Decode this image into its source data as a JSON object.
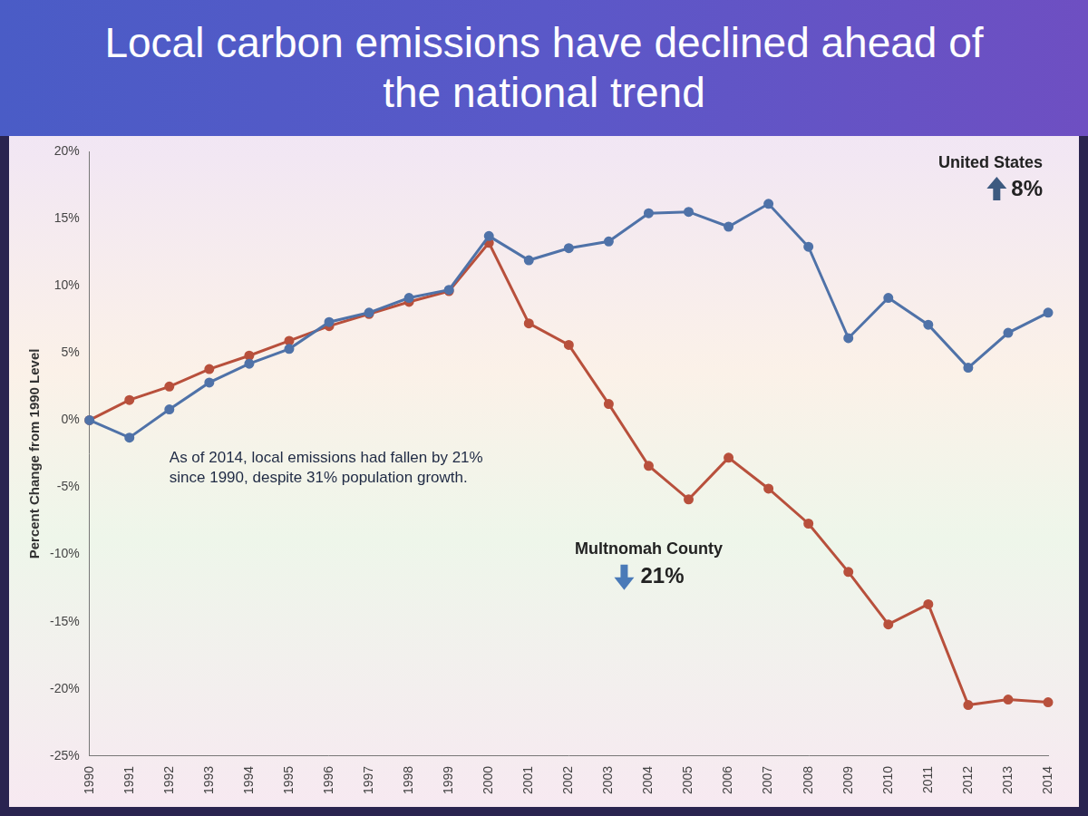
{
  "chart_data": {
    "type": "line",
    "title": "Local carbon emissions have declined ahead of the national trend",
    "y_label": "Percent Change from 1990 Level",
    "categories": [
      "1990",
      "1991",
      "1992",
      "1993",
      "1994",
      "1995",
      "1996",
      "1997",
      "1998",
      "1999",
      "2000",
      "2001",
      "2002",
      "2003",
      "2004",
      "2005",
      "2006",
      "2007",
      "2008",
      "2009",
      "2010",
      "2011",
      "2012",
      "2013",
      "2014"
    ],
    "series": [
      {
        "name": "United States",
        "color": "#4f72a8",
        "change_label": "8%",
        "values": [
          0,
          -1.3,
          0.8,
          2.8,
          4.2,
          5.3,
          7.3,
          8.0,
          9.1,
          9.7,
          13.7,
          11.9,
          12.8,
          13.3,
          15.4,
          15.5,
          14.4,
          16.1,
          12.9,
          6.1,
          9.1,
          7.1,
          3.9,
          6.5,
          8
        ]
      },
      {
        "name": "Multnomah County",
        "color": "#b8503c",
        "change_label": "21%",
        "values": [
          0,
          1.5,
          2.5,
          3.8,
          4.8,
          5.9,
          7.0,
          7.9,
          8.8,
          9.6,
          13.2,
          7.2,
          5.6,
          1.2,
          -3.4,
          -5.9,
          -2.8,
          -5.1,
          -7.7,
          -11.3,
          -15.2,
          -13.7,
          -21.2,
          -20.8,
          -21
        ]
      }
    ],
    "note": "As of 2014, local emissions had fallen by 21% since 1990, despite 31% population growth.",
    "ylim": [
      -25,
      20
    ],
    "yticks": [
      {
        "value": -25,
        "label": "-25%"
      },
      {
        "value": -20,
        "label": "-20%"
      },
      {
        "value": -15,
        "label": "-15%"
      },
      {
        "value": -10,
        "label": "-10%"
      },
      {
        "value": -5,
        "label": "-5%"
      },
      {
        "value": 0,
        "label": "0%"
      },
      {
        "value": 5,
        "label": "5%"
      },
      {
        "value": 10,
        "label": "10%"
      },
      {
        "value": 15,
        "label": "15%"
      },
      {
        "value": 20,
        "label": "20%"
      }
    ],
    "grid": false,
    "marker": "circle"
  }
}
